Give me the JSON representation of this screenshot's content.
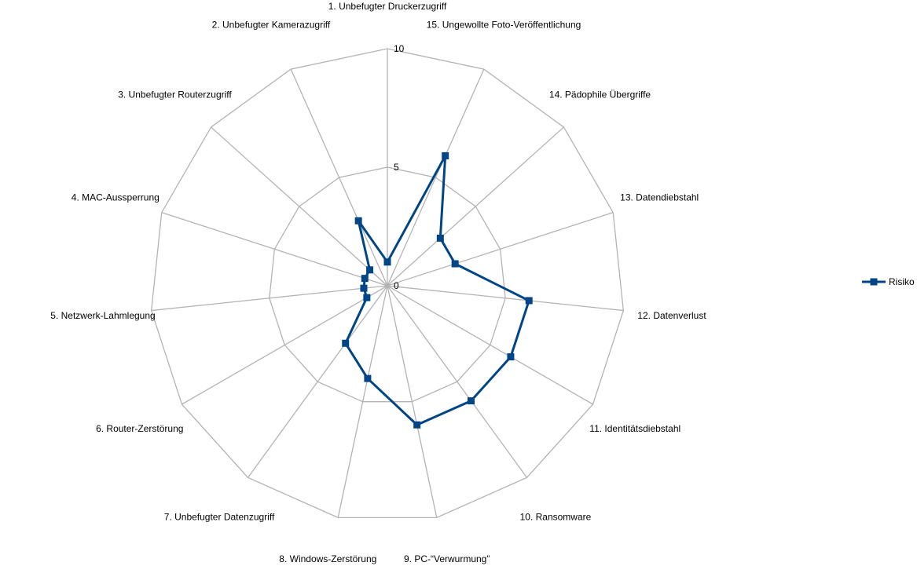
{
  "chart_data": {
    "type": "radar",
    "categories": [
      "1. Unbefugter Druckerzugriff",
      "2. Unbefugter Kamerazugriff",
      "3. Unbefugter Routerzugriff",
      "4. MAC-Aussperrung",
      "5. Netzwerk-Lahmlegung",
      "6. Router-Zerstörung",
      "7. Unbefugter Datenzugriff",
      "8. Windows-Zerstörung",
      "9. PC-“Verwurmung”",
      "10. Ransomware",
      "11. Identitätsdiebstahl",
      "12. Datenverlust",
      "13. Datendiebstahl",
      "14. Pädophile Übergriffe",
      "15. Ungewollte Foto-Veröffentlichung"
    ],
    "series": [
      {
        "name": "Risiko",
        "values": [
          1,
          3,
          1,
          1,
          1,
          1,
          3,
          4,
          6,
          6,
          6,
          6,
          3,
          3,
          6
        ]
      }
    ],
    "rmin": 0,
    "rmax": 10,
    "ticks": [
      "0",
      "5",
      "10"
    ],
    "grid_levels": [
      0,
      5,
      10
    ],
    "grid": true,
    "legend_position": "right",
    "colors": {
      "series": "#004586",
      "grid": "#b3b3b3"
    }
  }
}
